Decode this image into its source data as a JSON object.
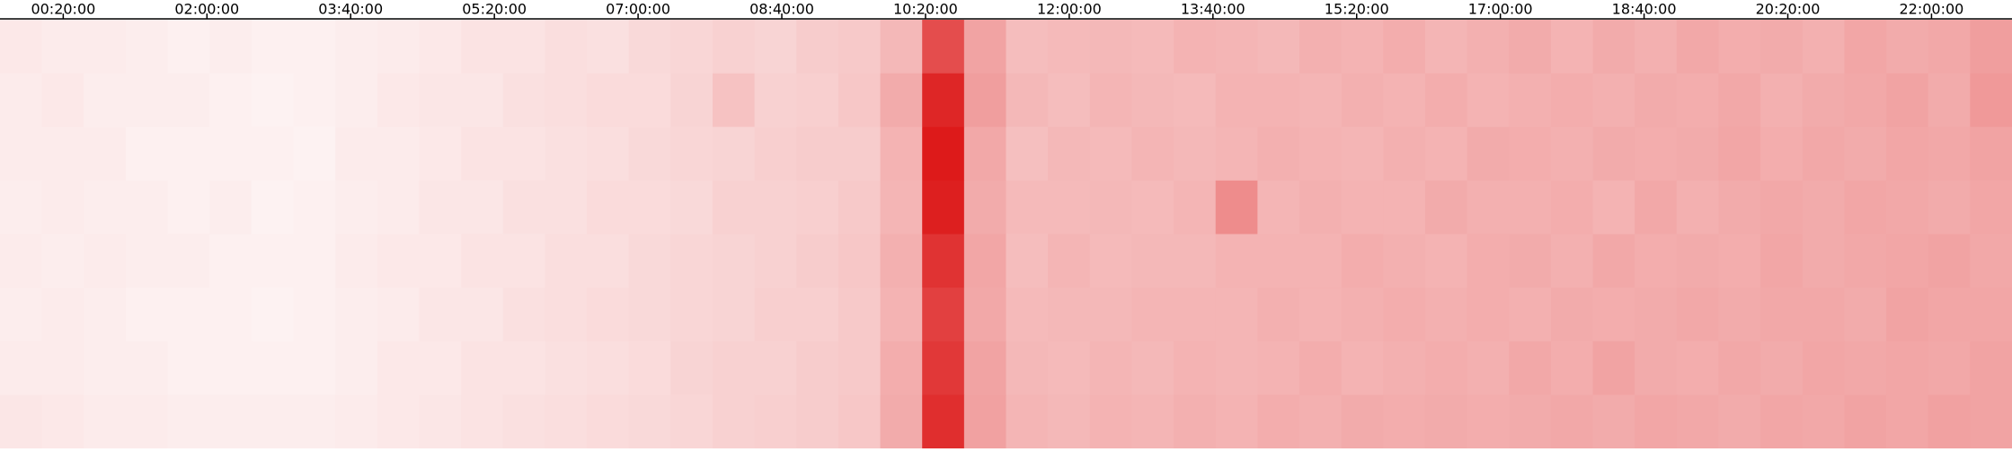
{
  "chart_data": {
    "type": "heatmap",
    "xlim": [
      -24,
      1376
    ],
    "xticks": [
      {
        "value": 20,
        "label": "00:20:00"
      },
      {
        "value": 120,
        "label": "02:00:00"
      },
      {
        "value": 220,
        "label": "03:40:00"
      },
      {
        "value": 320,
        "label": "05:20:00"
      },
      {
        "value": 420,
        "label": "07:00:00"
      },
      {
        "value": 520,
        "label": "08:40:00"
      },
      {
        "value": 620,
        "label": "10:20:00"
      },
      {
        "value": 720,
        "label": "12:00:00"
      },
      {
        "value": 820,
        "label": "13:40:00"
      },
      {
        "value": 920,
        "label": "15:20:00"
      },
      {
        "value": 1020,
        "label": "17:00:00"
      },
      {
        "value": 1120,
        "label": "18:40:00"
      },
      {
        "value": 1220,
        "label": "20:20:00"
      },
      {
        "value": 1320,
        "label": "22:00:00"
      }
    ],
    "color": "#ff0000",
    "values": [
      [
        9,
        8,
        8,
        7,
        6,
        7,
        6,
        6,
        7,
        8,
        9,
        11,
        11,
        13,
        12,
        15,
        16,
        18,
        17,
        20,
        21,
        28,
        70,
        36,
        26,
        27,
        28,
        27,
        30,
        29,
        28,
        31,
        30,
        32,
        29,
        31,
        33,
        30,
        33,
        31,
        34,
        32,
        33,
        31,
        35,
        33,
        34,
        38
      ],
      [
        8,
        9,
        7,
        7,
        7,
        6,
        5,
        6,
        7,
        9,
        10,
        10,
        12,
        13,
        14,
        14,
        17,
        24,
        18,
        19,
        22,
        33,
        85,
        38,
        28,
        26,
        29,
        28,
        27,
        30,
        30,
        29,
        31,
        30,
        32,
        30,
        31,
        32,
        31,
        33,
        32,
        34,
        31,
        33,
        34,
        36,
        33,
        40
      ],
      [
        8,
        8,
        8,
        6,
        6,
        6,
        6,
        5,
        8,
        8,
        9,
        11,
        11,
        12,
        13,
        15,
        16,
        17,
        19,
        20,
        20,
        30,
        90,
        34,
        25,
        28,
        27,
        29,
        28,
        29,
        31,
        30,
        29,
        31,
        30,
        33,
        32,
        31,
        33,
        32,
        33,
        35,
        32,
        34,
        33,
        35,
        34,
        36
      ],
      [
        7,
        8,
        7,
        7,
        6,
        7,
        5,
        6,
        7,
        8,
        10,
        10,
        12,
        12,
        14,
        14,
        15,
        18,
        18,
        19,
        21,
        29,
        88,
        33,
        27,
        27,
        28,
        27,
        29,
        45,
        29,
        31,
        30,
        30,
        33,
        31,
        31,
        32,
        30,
        34,
        31,
        33,
        34,
        33,
        35,
        34,
        33,
        35
      ],
      [
        8,
        7,
        8,
        7,
        7,
        6,
        6,
        6,
        8,
        9,
        9,
        11,
        11,
        13,
        13,
        15,
        16,
        17,
        18,
        20,
        22,
        31,
        80,
        35,
        26,
        29,
        27,
        28,
        28,
        30,
        30,
        30,
        32,
        31,
        30,
        32,
        33,
        31,
        34,
        32,
        33,
        32,
        35,
        33,
        34,
        35,
        36,
        34
      ],
      [
        7,
        8,
        7,
        6,
        6,
        6,
        5,
        6,
        7,
        8,
        10,
        10,
        12,
        13,
        14,
        15,
        16,
        17,
        19,
        19,
        21,
        30,
        75,
        34,
        27,
        28,
        28,
        29,
        29,
        29,
        31,
        30,
        31,
        32,
        31,
        32,
        31,
        33,
        32,
        33,
        34,
        33,
        34,
        34,
        33,
        36,
        35,
        35
      ],
      [
        8,
        8,
        7,
        7,
        6,
        6,
        6,
        6,
        7,
        9,
        9,
        11,
        11,
        12,
        13,
        14,
        17,
        18,
        18,
        20,
        21,
        32,
        78,
        36,
        28,
        27,
        29,
        28,
        30,
        29,
        30,
        32,
        30,
        31,
        32,
        31,
        34,
        32,
        36,
        33,
        32,
        34,
        33,
        35,
        34,
        35,
        34,
        36
      ],
      [
        10,
        9,
        8,
        8,
        7,
        7,
        7,
        7,
        8,
        9,
        10,
        11,
        12,
        13,
        14,
        15,
        16,
        18,
        19,
        20,
        22,
        33,
        82,
        37,
        29,
        28,
        30,
        29,
        31,
        30,
        32,
        31,
        33,
        32,
        33,
        32,
        33,
        34,
        33,
        35,
        34,
        33,
        35,
        34,
        36,
        35,
        37,
        36
      ]
    ]
  }
}
